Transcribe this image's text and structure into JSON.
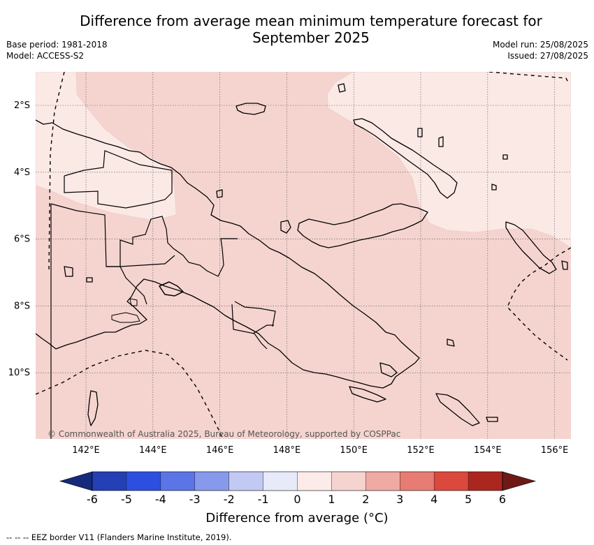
{
  "header": {
    "title_line1": "Difference from average mean minimum temperature forecast for",
    "title_line2": "September 2025",
    "base_period": "Base period: 1981-2018",
    "model": "Model: ACCESS-S2",
    "model_run": "Model run: 25/08/2025",
    "issued": "Issued: 27/08/2025"
  },
  "map": {
    "region": "Papua New Guinea",
    "lon_labels": [
      "142°E",
      "144°E",
      "146°E",
      "148°E",
      "150°E",
      "152°E",
      "154°E",
      "156°E"
    ],
    "lat_labels": [
      "2°S",
      "4°S",
      "6°S",
      "8°S",
      "10°S"
    ],
    "gridlines": "dotted",
    "fill_colors": {
      "zero_to_one": "#fbe9e6",
      "one_to_two": "#f5d4cf"
    },
    "copyright": "© Commonwealth of Australia 2025, Bureau of Meteorology, supported by COSPPac"
  },
  "colorbar": {
    "ticks": [
      "-6",
      "-5",
      "-4",
      "-3",
      "-2",
      "-1",
      "0",
      "1",
      "2",
      "3",
      "4",
      "5",
      "6"
    ],
    "colors": [
      "#152a7a",
      "#2440b4",
      "#2d4fe0",
      "#5b74e6",
      "#8799ea",
      "#c2c9f3",
      "#e6eaf9",
      "#fcebe8",
      "#f5d4cf",
      "#efaaa3",
      "#e67c74",
      "#db483c",
      "#ac2620",
      "#6d1a16"
    ],
    "title": "Difference from average (°C)",
    "title_unit_glyph": "∘"
  },
  "legend_note": "-- -- -- EEZ border V11 (Flanders Marine Institute, 2019)."
}
